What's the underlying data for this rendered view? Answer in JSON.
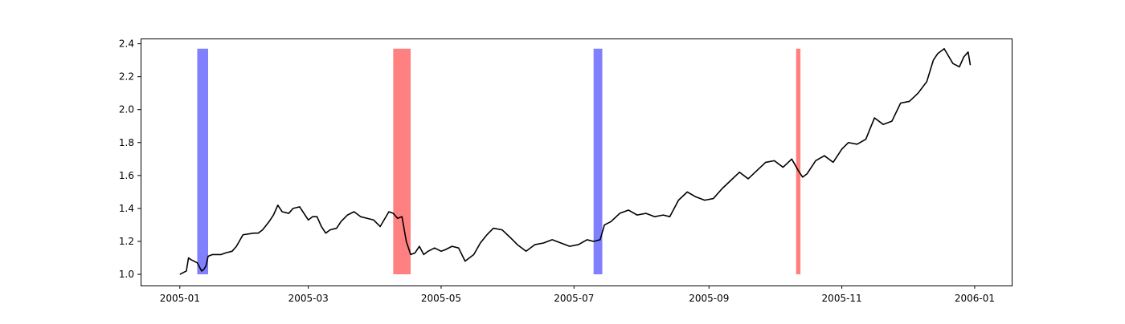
{
  "chart_data": {
    "type": "line",
    "title": "",
    "xlabel": "",
    "ylabel": "",
    "xlim": [
      "2004-12-14",
      "2006-01-18"
    ],
    "ylim": [
      0.932,
      2.432
    ],
    "grid": false,
    "legend": "none",
    "x_ticks": [
      "2005-01-01",
      "2005-03-01",
      "2005-05-01",
      "2005-07-01",
      "2005-09-01",
      "2005-11-01",
      "2006-01-01"
    ],
    "x_tick_labels": [
      "2005-01",
      "2005-03",
      "2005-05",
      "2005-07",
      "2005-09",
      "2005-11",
      "2006-01"
    ],
    "y_ticks": [
      1.0,
      1.2,
      1.4,
      1.6,
      1.8,
      2.0,
      2.2,
      2.4
    ],
    "y_tick_labels": [
      "1.0",
      "1.2",
      "1.4",
      "1.6",
      "1.8",
      "2.0",
      "2.2",
      "2.4"
    ],
    "line_color": "#000000",
    "series": [
      {
        "x": [
          "2005-01-01",
          "2005-01-04",
          "2005-01-05",
          "2005-01-06",
          "2005-01-09",
          "2005-01-11",
          "2005-01-12",
          "2005-01-13",
          "2005-01-14",
          "2005-01-16",
          "2005-01-20",
          "2005-01-22",
          "2005-01-25",
          "2005-01-27",
          "2005-01-30",
          "2005-02-04",
          "2005-02-06",
          "2005-02-08",
          "2005-02-11",
          "2005-02-13",
          "2005-02-15",
          "2005-02-17",
          "2005-02-20",
          "2005-02-22",
          "2005-02-25",
          "2005-03-01",
          "2005-03-03",
          "2005-03-05",
          "2005-03-07",
          "2005-03-09",
          "2005-03-11",
          "2005-03-14",
          "2005-03-16",
          "2005-03-19",
          "2005-03-22",
          "2005-03-25",
          "2005-03-28",
          "2005-03-31",
          "2005-04-03",
          "2005-04-07",
          "2005-04-09",
          "2005-04-11",
          "2005-04-13",
          "2005-04-15",
          "2005-04-17",
          "2005-04-19",
          "2005-04-21",
          "2005-04-23",
          "2005-04-25",
          "2005-04-28",
          "2005-05-01",
          "2005-05-03",
          "2005-05-06",
          "2005-05-09",
          "2005-05-12",
          "2005-05-16",
          "2005-05-19",
          "2005-05-22",
          "2005-05-25",
          "2005-05-29",
          "2005-06-02",
          "2005-06-05",
          "2005-06-09",
          "2005-06-13",
          "2005-06-17",
          "2005-06-21",
          "2005-06-25",
          "2005-06-29",
          "2005-07-03",
          "2005-07-07",
          "2005-07-10",
          "2005-07-13",
          "2005-07-15",
          "2005-07-18",
          "2005-07-22",
          "2005-07-26",
          "2005-07-30",
          "2005-08-03",
          "2005-08-07",
          "2005-08-11",
          "2005-08-14",
          "2005-08-18",
          "2005-08-22",
          "2005-08-26",
          "2005-08-30",
          "2005-09-03",
          "2005-09-07",
          "2005-09-11",
          "2005-09-15",
          "2005-09-19",
          "2005-09-23",
          "2005-09-27",
          "2005-10-01",
          "2005-10-05",
          "2005-10-09",
          "2005-10-12",
          "2005-10-14",
          "2005-10-16",
          "2005-10-20",
          "2005-10-24",
          "2005-10-28",
          "2005-11-01",
          "2005-11-04",
          "2005-11-08",
          "2005-11-12",
          "2005-11-16",
          "2005-11-20",
          "2005-11-24",
          "2005-11-28",
          "2005-12-02",
          "2005-12-06",
          "2005-12-10",
          "2005-12-13",
          "2005-12-15",
          "2005-12-18",
          "2005-12-22",
          "2005-12-25",
          "2005-12-27",
          "2005-12-29",
          "2005-12-30"
        ],
        "y": [
          1.0,
          1.02,
          1.1,
          1.09,
          1.07,
          1.02,
          1.03,
          1.05,
          1.11,
          1.12,
          1.12,
          1.13,
          1.14,
          1.17,
          1.24,
          1.25,
          1.25,
          1.27,
          1.32,
          1.36,
          1.42,
          1.38,
          1.37,
          1.4,
          1.41,
          1.33,
          1.35,
          1.35,
          1.29,
          1.25,
          1.27,
          1.28,
          1.32,
          1.36,
          1.38,
          1.35,
          1.34,
          1.33,
          1.29,
          1.38,
          1.37,
          1.34,
          1.35,
          1.2,
          1.12,
          1.13,
          1.17,
          1.12,
          1.14,
          1.16,
          1.14,
          1.15,
          1.17,
          1.16,
          1.08,
          1.12,
          1.19,
          1.24,
          1.28,
          1.27,
          1.22,
          1.18,
          1.14,
          1.18,
          1.19,
          1.21,
          1.19,
          1.17,
          1.18,
          1.21,
          1.2,
          1.21,
          1.3,
          1.32,
          1.37,
          1.39,
          1.36,
          1.37,
          1.35,
          1.36,
          1.35,
          1.45,
          1.5,
          1.47,
          1.45,
          1.46,
          1.52,
          1.57,
          1.62,
          1.58,
          1.63,
          1.68,
          1.69,
          1.65,
          1.7,
          1.63,
          1.59,
          1.61,
          1.69,
          1.72,
          1.68,
          1.76,
          1.8,
          1.79,
          1.82,
          1.95,
          1.91,
          1.93,
          2.04,
          2.05,
          2.1,
          2.17,
          2.3,
          2.34,
          2.37,
          2.28,
          2.26,
          2.32,
          2.35,
          2.27
        ],
        "color": "#000000"
      }
    ],
    "spans": [
      {
        "start": "2005-01-09",
        "end": "2005-01-14",
        "color": "#8080ff"
      },
      {
        "start": "2005-04-09",
        "end": "2005-04-17",
        "color": "#ff8080"
      },
      {
        "start": "2005-07-10",
        "end": "2005-07-14",
        "color": "#8080ff"
      },
      {
        "start": "2005-10-11",
        "end": "2005-10-13",
        "color": "#ff8080"
      }
    ],
    "span_ylim": [
      1.0,
      2.37
    ]
  }
}
